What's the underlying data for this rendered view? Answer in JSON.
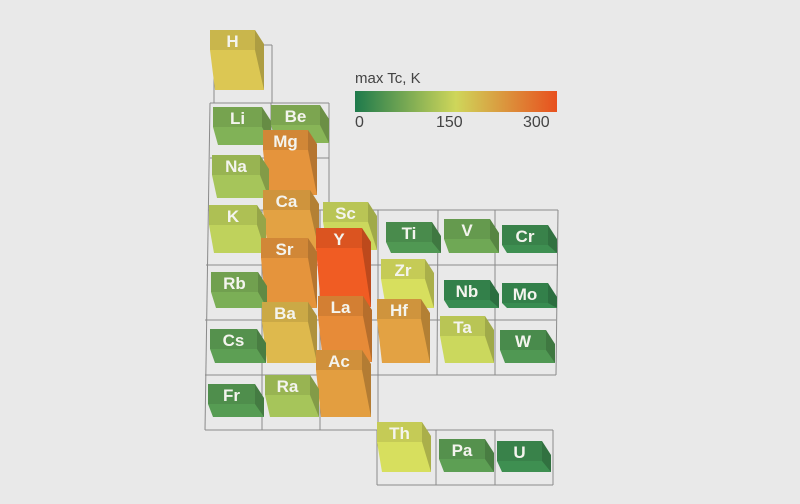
{
  "chart_data": {
    "type": "3d-bar-periodic-table",
    "legend": {
      "title": "max Tc, K",
      "ticks": [
        "0",
        "150",
        "300"
      ],
      "range": [
        0,
        300
      ],
      "colors": [
        "#1e7a4c",
        "#cfd65a",
        "#e8501e"
      ]
    },
    "elements": [
      {
        "symbol": "H",
        "tc": 175
      },
      {
        "symbol": "Li",
        "tc": 80
      },
      {
        "symbol": "Be",
        "tc": 85
      },
      {
        "symbol": "Mg",
        "tc": 230
      },
      {
        "symbol": "Na",
        "tc": 110
      },
      {
        "symbol": "Ca",
        "tc": 215
      },
      {
        "symbol": "K",
        "tc": 130
      },
      {
        "symbol": "Sc",
        "tc": 140
      },
      {
        "symbol": "Y",
        "tc": 290
      },
      {
        "symbol": "Ti",
        "tc": 40
      },
      {
        "symbol": "V",
        "tc": 65
      },
      {
        "symbol": "Cr",
        "tc": 25
      },
      {
        "symbol": "Sr",
        "tc": 230
      },
      {
        "symbol": "Rb",
        "tc": 75
      },
      {
        "symbol": "Zr",
        "tc": 150
      },
      {
        "symbol": "Nb",
        "tc": 20
      },
      {
        "symbol": "Mo",
        "tc": 20
      },
      {
        "symbol": "Cs",
        "tc": 50
      },
      {
        "symbol": "Ba",
        "tc": 190
      },
      {
        "symbol": "La",
        "tc": 240
      },
      {
        "symbol": "Hf",
        "tc": 215
      },
      {
        "symbol": "Ta",
        "tc": 140
      },
      {
        "symbol": "W",
        "tc": 40
      },
      {
        "symbol": "Fr",
        "tc": 45
      },
      {
        "symbol": "Ra",
        "tc": 110
      },
      {
        "symbol": "Ac",
        "tc": 220
      },
      {
        "symbol": "Th",
        "tc": 150
      },
      {
        "symbol": "Pa",
        "tc": 50
      },
      {
        "symbol": "U",
        "tc": 25
      }
    ]
  }
}
